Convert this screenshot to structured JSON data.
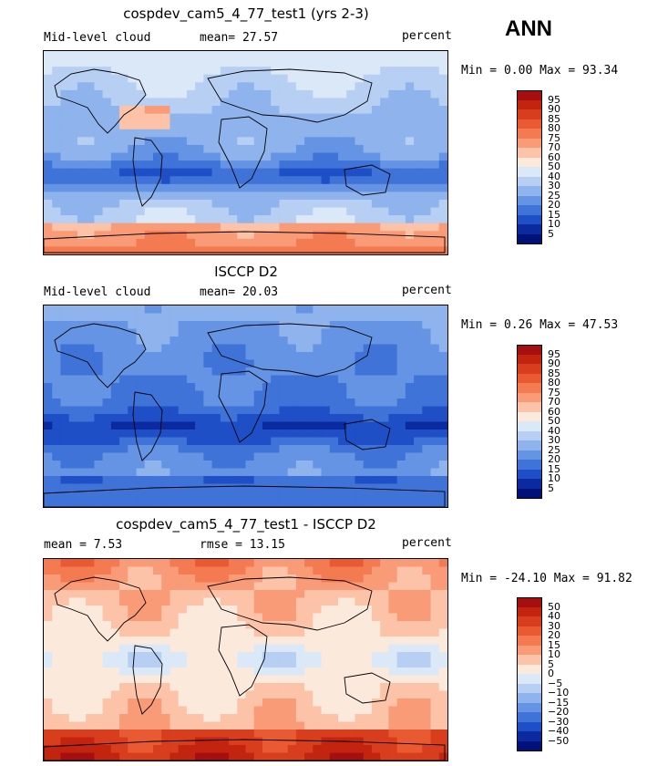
{
  "season": "ANN",
  "panels": [
    {
      "title": "cospdev_cam5_4_77_test1 (yrs 2-3)",
      "left_label": "Mid-level cloud",
      "mean_label": "mean=  27.57",
      "units": "percent",
      "minmax": "Min =    0.00 Max =   93.34",
      "levels": [
        "95",
        "90",
        "85",
        "80",
        "75",
        "70",
        "60",
        "50",
        "40",
        "30",
        "25",
        "20",
        "15",
        "10",
        "5"
      ],
      "colors": [
        "#a50f0f",
        "#c2240f",
        "#d83d1e",
        "#ea5a32",
        "#f47a52",
        "#f99b77",
        "#fcc3a8",
        "#fbe9dc",
        "#dbe8f8",
        "#b6cff2",
        "#8fb3ec",
        "#6494e3",
        "#3f73d8",
        "#1f4fc6",
        "#0c2aa0",
        "#00117a"
      ],
      "field": "model"
    },
    {
      "title": "ISCCP D2",
      "left_label": "Mid-level cloud",
      "mean_label": "mean=  20.03",
      "units": "percent",
      "minmax": "Min =    0.26 Max =   47.53",
      "levels": [
        "95",
        "90",
        "85",
        "80",
        "75",
        "70",
        "60",
        "50",
        "40",
        "30",
        "25",
        "20",
        "15",
        "10",
        "5"
      ],
      "colors": [
        "#a50f0f",
        "#c2240f",
        "#d83d1e",
        "#ea5a32",
        "#f47a52",
        "#f99b77",
        "#fcc3a8",
        "#fbe9dc",
        "#dbe8f8",
        "#b6cff2",
        "#8fb3ec",
        "#6494e3",
        "#3f73d8",
        "#1f4fc6",
        "#0c2aa0",
        "#00117a"
      ],
      "field": "obs"
    },
    {
      "title": "cospdev_cam5_4_77_test1 - ISCCP D2",
      "left_label": "mean =    7.53",
      "mean_label": "rmse =   13.15",
      "units": "percent",
      "minmax": "Min = -24.10 Max =   91.82",
      "levels": [
        "50",
        "40",
        "30",
        "20",
        "15",
        "10",
        "5",
        "0",
        "−5",
        "−10",
        "−15",
        "−20",
        "−30",
        "−40",
        "−50"
      ],
      "colors": [
        "#a50f0f",
        "#c2240f",
        "#d83d1e",
        "#ea5a32",
        "#f47a52",
        "#f99b77",
        "#fcc3a8",
        "#fbe9dc",
        "#dbe8f8",
        "#b6cff2",
        "#8fb3ec",
        "#6494e3",
        "#3f73d8",
        "#1f4fc6",
        "#0c2aa0",
        "#00117a"
      ],
      "field": "diff"
    }
  ]
}
